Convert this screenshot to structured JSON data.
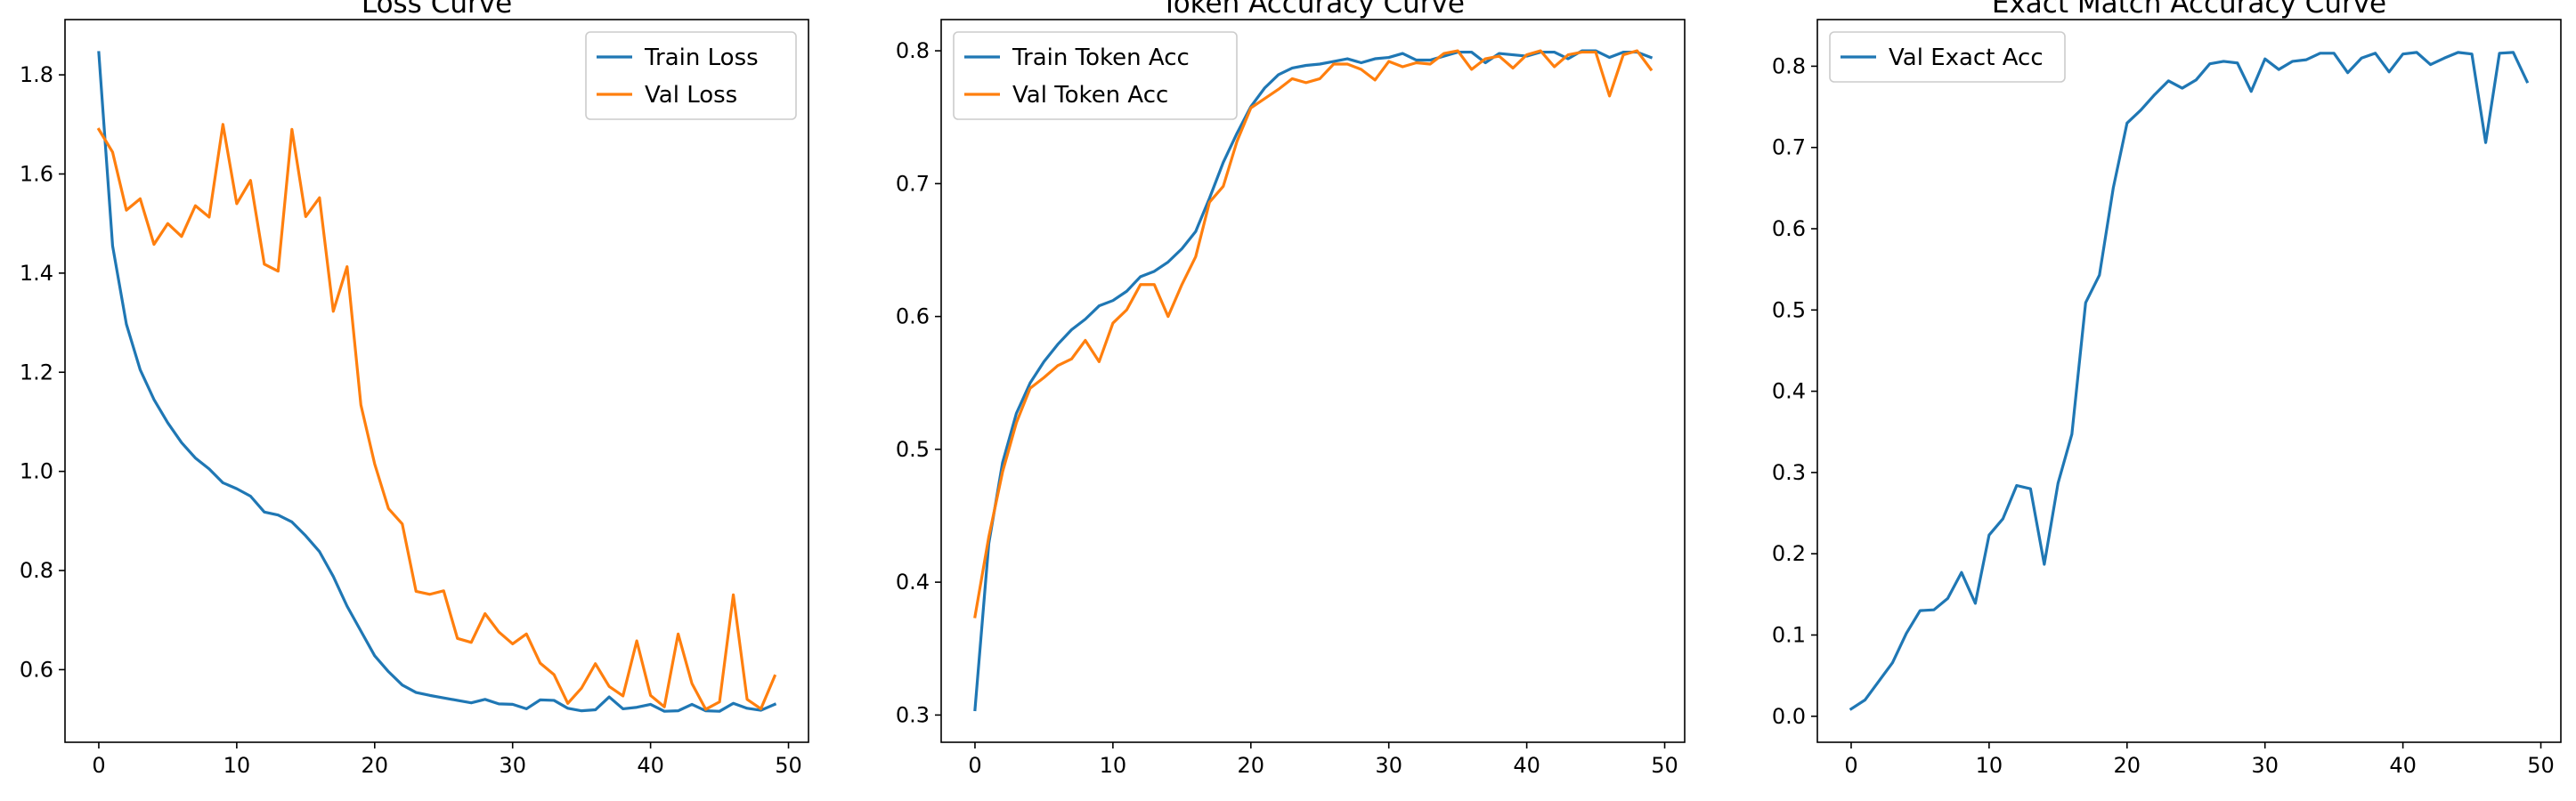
{
  "chart_data": [
    {
      "type": "line",
      "title": "Loss Curve",
      "xlabel": "",
      "ylabel": "",
      "xlim": [
        -2.45,
        51.45
      ],
      "ylim": [
        0.4535,
        1.9115
      ],
      "xticks": [
        0,
        10,
        20,
        30,
        40,
        50
      ],
      "yticks": [
        0.6,
        0.8,
        1.0,
        1.2,
        1.4,
        1.6,
        1.8
      ],
      "ytick_labels": [
        "0.6",
        "0.8",
        "1.0",
        "1.2",
        "1.4",
        "1.6",
        "1.8"
      ],
      "grid": false,
      "legend_position": "top-right",
      "x": [
        0,
        1,
        2,
        3,
        4,
        5,
        6,
        7,
        8,
        9,
        10,
        11,
        12,
        13,
        14,
        15,
        16,
        17,
        18,
        19,
        20,
        21,
        22,
        23,
        24,
        25,
        26,
        27,
        28,
        29,
        30,
        31,
        32,
        33,
        34,
        35,
        36,
        37,
        38,
        39,
        40,
        41,
        42,
        43,
        44,
        45,
        46,
        47,
        48,
        49
      ],
      "series": [
        {
          "name": "Train Loss",
          "color": "#1f77b4",
          "values": [
            1.845,
            1.455,
            1.297,
            1.205,
            1.145,
            1.098,
            1.058,
            1.027,
            1.005,
            0.977,
            0.965,
            0.95,
            0.918,
            0.912,
            0.898,
            0.87,
            0.838,
            0.788,
            0.728,
            0.678,
            0.628,
            0.596,
            0.569,
            0.554,
            0.548,
            0.543,
            0.538,
            0.533,
            0.54,
            0.531,
            0.53,
            0.521,
            0.539,
            0.538,
            0.522,
            0.517,
            0.519,
            0.545,
            0.521,
            0.524,
            0.53,
            0.516,
            0.517,
            0.53,
            0.517,
            0.516,
            0.532,
            0.522,
            0.518,
            0.53
          ]
        },
        {
          "name": "Val Loss",
          "color": "#ff7f0e",
          "values": [
            1.69,
            1.644,
            1.527,
            1.55,
            1.458,
            1.5,
            1.474,
            1.536,
            1.513,
            1.7,
            1.54,
            1.587,
            1.418,
            1.404,
            1.69,
            1.514,
            1.552,
            1.323,
            1.413,
            1.134,
            1.015,
            0.925,
            0.894,
            0.758,
            0.752,
            0.759,
            0.663,
            0.655,
            0.713,
            0.676,
            0.652,
            0.672,
            0.613,
            0.59,
            0.532,
            0.563,
            0.612,
            0.566,
            0.547,
            0.658,
            0.548,
            0.525,
            0.672,
            0.572,
            0.52,
            0.535,
            0.751,
            0.54,
            0.521,
            0.587
          ]
        }
      ]
    },
    {
      "type": "line",
      "title": "Token Accuracy Curve",
      "xlabel": "",
      "ylabel": "",
      "xlim": [
        -2.45,
        51.45
      ],
      "ylim": [
        0.2795,
        0.8235
      ],
      "xticks": [
        0,
        10,
        20,
        30,
        40,
        50
      ],
      "yticks": [
        0.3,
        0.4,
        0.5,
        0.6,
        0.7,
        0.8
      ],
      "ytick_labels": [
        "0.3",
        "0.4",
        "0.5",
        "0.6",
        "0.7",
        "0.8"
      ],
      "grid": false,
      "legend_position": "top-left",
      "x": [
        0,
        1,
        2,
        3,
        4,
        5,
        6,
        7,
        8,
        9,
        10,
        11,
        12,
        13,
        14,
        15,
        16,
        17,
        18,
        19,
        20,
        21,
        22,
        23,
        24,
        25,
        26,
        27,
        28,
        29,
        30,
        31,
        32,
        33,
        34,
        35,
        36,
        37,
        38,
        39,
        40,
        41,
        42,
        43,
        44,
        45,
        46,
        47,
        48,
        49
      ],
      "series": [
        {
          "name": "Train Token Acc",
          "color": "#1f77b4",
          "values": [
            0.304,
            0.429,
            0.49,
            0.527,
            0.55,
            0.566,
            0.579,
            0.59,
            0.598,
            0.608,
            0.612,
            0.619,
            0.63,
            0.634,
            0.641,
            0.651,
            0.664,
            0.689,
            0.716,
            0.738,
            0.758,
            0.772,
            0.782,
            0.787,
            0.789,
            0.79,
            0.792,
            0.794,
            0.791,
            0.794,
            0.795,
            0.798,
            0.793,
            0.793,
            0.796,
            0.799,
            0.799,
            0.791,
            0.798,
            0.797,
            0.796,
            0.799,
            0.799,
            0.794,
            0.8,
            0.8,
            0.795,
            0.799,
            0.799,
            0.795
          ]
        },
        {
          "name": "Val Token Acc",
          "color": "#ff7f0e",
          "values": [
            0.374,
            0.434,
            0.483,
            0.52,
            0.546,
            0.554,
            0.563,
            0.568,
            0.582,
            0.566,
            0.595,
            0.605,
            0.624,
            0.624,
            0.6,
            0.624,
            0.645,
            0.686,
            0.698,
            0.732,
            0.757,
            0.764,
            0.771,
            0.779,
            0.776,
            0.779,
            0.79,
            0.79,
            0.786,
            0.778,
            0.792,
            0.788,
            0.791,
            0.79,
            0.798,
            0.8,
            0.786,
            0.794,
            0.796,
            0.787,
            0.797,
            0.8,
            0.788,
            0.797,
            0.799,
            0.799,
            0.766,
            0.797,
            0.8,
            0.786
          ]
        }
      ]
    },
    {
      "type": "line",
      "title": "Exact Match Accuracy Curve",
      "xlabel": "",
      "ylabel": "",
      "xlim": [
        -2.45,
        51.45
      ],
      "ylim": [
        -0.032,
        0.8574
      ],
      "xticks": [
        0,
        10,
        20,
        30,
        40,
        50
      ],
      "yticks": [
        0.0,
        0.1,
        0.2,
        0.3,
        0.4,
        0.5,
        0.6,
        0.7,
        0.8
      ],
      "ytick_labels": [
        "0.0",
        "0.1",
        "0.2",
        "0.3",
        "0.4",
        "0.5",
        "0.6",
        "0.7",
        "0.8"
      ],
      "grid": false,
      "legend_position": "top-left",
      "x": [
        0,
        1,
        2,
        3,
        4,
        5,
        6,
        7,
        8,
        9,
        10,
        11,
        12,
        13,
        14,
        15,
        16,
        17,
        18,
        19,
        20,
        21,
        22,
        23,
        24,
        25,
        26,
        27,
        28,
        29,
        30,
        31,
        32,
        33,
        34,
        35,
        36,
        37,
        38,
        39,
        40,
        41,
        42,
        43,
        44,
        45,
        46,
        47,
        48,
        49
      ],
      "series": [
        {
          "name": "Val Exact Acc",
          "color": "#1f77b4",
          "values": [
            0.009,
            0.02,
            0.043,
            0.066,
            0.102,
            0.13,
            0.131,
            0.145,
            0.177,
            0.139,
            0.223,
            0.243,
            0.284,
            0.28,
            0.187,
            0.287,
            0.347,
            0.509,
            0.543,
            0.65,
            0.73,
            0.746,
            0.765,
            0.782,
            0.773,
            0.783,
            0.803,
            0.806,
            0.804,
            0.769,
            0.809,
            0.796,
            0.806,
            0.808,
            0.816,
            0.816,
            0.792,
            0.81,
            0.816,
            0.793,
            0.815,
            0.817,
            0.802,
            0.81,
            0.817,
            0.815,
            0.706,
            0.816,
            0.817,
            0.781
          ]
        }
      ]
    }
  ]
}
